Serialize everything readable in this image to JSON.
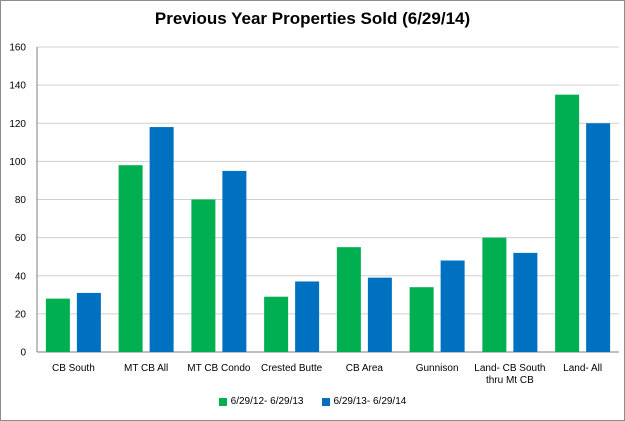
{
  "chart_data": {
    "type": "bar",
    "title": "Previous Year Properties Sold (6/29/14)",
    "categories": [
      [
        "CB South"
      ],
      [
        "MT CB All"
      ],
      [
        "MT CB Condo"
      ],
      [
        "Crested Butte"
      ],
      [
        "CB Area"
      ],
      [
        "Gunnison"
      ],
      [
        "Land- CB South",
        "thru Mt CB"
      ],
      [
        "Land- All"
      ]
    ],
    "series": [
      {
        "name": "6/29/12- 6/29/13",
        "color": "#00b050",
        "values": [
          28,
          98,
          80,
          29,
          55,
          34,
          60,
          135
        ]
      },
      {
        "name": "6/29/13- 6/29/14",
        "color": "#0070c0",
        "values": [
          31,
          118,
          95,
          37,
          39,
          48,
          52,
          120
        ]
      }
    ],
    "ylim": [
      0,
      160
    ],
    "yticks": [
      0,
      20,
      40,
      60,
      80,
      100,
      120,
      140,
      160
    ],
    "grid": true,
    "legend_position": "bottom"
  }
}
